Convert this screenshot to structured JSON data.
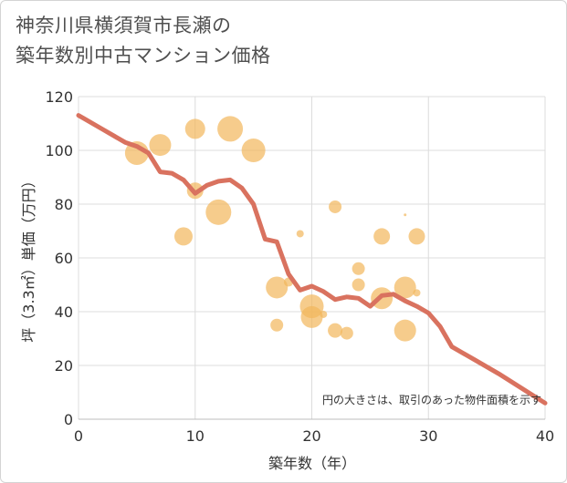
{
  "page": {
    "title_line1": "神奈川県横須賀市長瀬の",
    "title_line2": "築年数別中古マンション価格"
  },
  "chart_data": {
    "type": "scatter",
    "title": "神奈川県横須賀市長瀬の築年数別中古マンション価格",
    "xlabel": "築年数（年）",
    "ylabel": "坪（3.3㎡）単価（万円）",
    "xlim": [
      0,
      40
    ],
    "ylim": [
      0,
      120
    ],
    "xticks": [
      0,
      10,
      20,
      30,
      40
    ],
    "yticks": [
      0,
      20,
      40,
      60,
      80,
      100,
      120
    ],
    "grid": true,
    "annotation": "円の大きさは、取引のあった物件面積を示す",
    "colors": {
      "bubble": "#f2b75b",
      "trend": "#d9725f",
      "grid": "#dcdcdc"
    },
    "bubbles": [
      {
        "x": 5,
        "y": 99,
        "size": 13
      },
      {
        "x": 7,
        "y": 102,
        "size": 12
      },
      {
        "x": 9,
        "y": 68,
        "size": 10
      },
      {
        "x": 10,
        "y": 108,
        "size": 11
      },
      {
        "x": 10,
        "y": 85,
        "size": 9
      },
      {
        "x": 12,
        "y": 77,
        "size": 14
      },
      {
        "x": 13,
        "y": 108,
        "size": 14
      },
      {
        "x": 15,
        "y": 100,
        "size": 13
      },
      {
        "x": 17,
        "y": 49,
        "size": 12
      },
      {
        "x": 17,
        "y": 35,
        "size": 7
      },
      {
        "x": 18,
        "y": 51,
        "size": 5
      },
      {
        "x": 19,
        "y": 69,
        "size": 4
      },
      {
        "x": 20,
        "y": 42,
        "size": 13
      },
      {
        "x": 20,
        "y": 38,
        "size": 12
      },
      {
        "x": 21,
        "y": 39,
        "size": 4
      },
      {
        "x": 22,
        "y": 79,
        "size": 7
      },
      {
        "x": 22,
        "y": 33,
        "size": 8
      },
      {
        "x": 23,
        "y": 32,
        "size": 7
      },
      {
        "x": 24,
        "y": 56,
        "size": 7
      },
      {
        "x": 24,
        "y": 50,
        "size": 7
      },
      {
        "x": 26,
        "y": 68,
        "size": 9
      },
      {
        "x": 26,
        "y": 45,
        "size": 12
      },
      {
        "x": 28,
        "y": 76,
        "size": 1.5
      },
      {
        "x": 28,
        "y": 49,
        "size": 12
      },
      {
        "x": 28,
        "y": 33,
        "size": 12
      },
      {
        "x": 29,
        "y": 68,
        "size": 9
      },
      {
        "x": 29,
        "y": 47,
        "size": 4
      }
    ],
    "trend": {
      "x": [
        0,
        2,
        4,
        5,
        6,
        7,
        8,
        9,
        10,
        11,
        12,
        13,
        14,
        15,
        16,
        17,
        18,
        19,
        20,
        21,
        22,
        23,
        24,
        25,
        26,
        27,
        28,
        29,
        30,
        31,
        32,
        34,
        36,
        38,
        40
      ],
      "y": [
        113,
        108,
        103,
        101.5,
        99,
        92,
        91.5,
        89,
        84,
        87,
        88.5,
        89,
        86,
        80,
        67,
        66,
        54,
        48,
        49.5,
        47.5,
        44.5,
        45.5,
        45,
        42,
        46,
        46.5,
        44,
        42,
        39.5,
        34.5,
        27,
        22,
        17,
        11.5,
        6
      ]
    }
  }
}
